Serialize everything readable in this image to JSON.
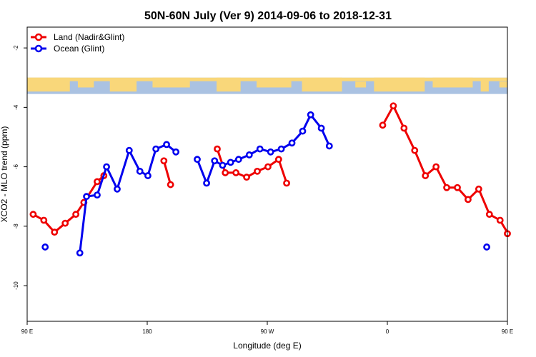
{
  "chart_data": {
    "type": "line",
    "title": "50N-60N July (Ver 9)   2014-09-06 to 2018-12-31",
    "xlabel": "Longitude (deg E)",
    "ylabel": "XCO2 - MLO trend (ppm)",
    "xlim": [
      90,
      450
    ],
    "ylim": [
      -11.2,
      -1.3
    ],
    "x_ticks": [
      {
        "value": 90,
        "label": "90 E"
      },
      {
        "value": 180,
        "label": "180"
      },
      {
        "value": 270,
        "label": "90 W"
      },
      {
        "value": 360,
        "label": "0"
      },
      {
        "value": 450,
        "label": "90 E"
      },
      {
        "value": 540,
        "label": "180"
      }
    ],
    "y_ticks": [
      {
        "value": -2,
        "label": "-2"
      },
      {
        "value": -4,
        "label": "-4"
      },
      {
        "value": -6,
        "label": "-6"
      },
      {
        "value": -8,
        "label": "-8"
      },
      {
        "value": -10,
        "label": "-10"
      }
    ],
    "map_band": {
      "ymin": -3.55,
      "ymax": -3.0
    },
    "legend_position": "top-left",
    "series": [
      {
        "name": "Land (Nadir&Glint)",
        "color": "#ee0000",
        "points": [
          [
            94.5,
            -7.6
          ],
          [
            102.5,
            -7.8
          ],
          [
            110.5,
            -8.2
          ],
          [
            118.5,
            -7.9
          ],
          [
            126.5,
            -7.6
          ],
          [
            132.5,
            -7.2
          ],
          [
            142.5,
            -6.5
          ],
          [
            147.5,
            -6.3
          ],
          [
            null,
            null
          ],
          [
            192.5,
            -5.8
          ],
          [
            197.5,
            -6.6
          ],
          [
            null,
            null
          ],
          [
            232.5,
            -5.4
          ],
          [
            238.5,
            -6.2
          ],
          [
            246.5,
            -6.2
          ],
          [
            254.5,
            -6.35
          ],
          [
            262.5,
            -6.15
          ],
          [
            270.5,
            -6.0
          ],
          [
            278.5,
            -5.75
          ],
          [
            284.5,
            -6.55
          ],
          [
            null,
            null
          ],
          [
            356.5,
            -4.6
          ],
          [
            364.5,
            -3.95
          ],
          [
            372.5,
            -4.7
          ],
          [
            380.5,
            -5.45
          ],
          [
            388.5,
            -6.3
          ],
          [
            396.5,
            -6.0
          ],
          [
            404.5,
            -6.7
          ],
          [
            412.5,
            -6.7
          ],
          [
            420.5,
            -7.1
          ],
          [
            428.5,
            -6.75
          ],
          [
            436.5,
            -7.6
          ],
          [
            444.5,
            -7.8
          ],
          [
            450.5,
            -8.25
          ],
          [
            458.5,
            -7.95
          ],
          [
            466.5,
            -7.6
          ],
          [
            470.5,
            -7.2
          ],
          [
            478.5,
            -6.5
          ],
          [
            484.5,
            -6.25
          ]
        ]
      },
      {
        "name": "Ocean (Glint)",
        "color": "#0000ee",
        "points": [
          [
            103.5,
            -8.7
          ],
          [
            null,
            null
          ],
          [
            129.5,
            -8.9
          ],
          [
            134.5,
            -7.0
          ],
          [
            142.5,
            -6.95
          ],
          [
            149.5,
            -6.0
          ],
          [
            157.5,
            -6.75
          ],
          [
            166.5,
            -5.45
          ],
          [
            174.5,
            -6.15
          ],
          [
            180.5,
            -6.3
          ],
          [
            186.5,
            -5.4
          ],
          [
            194.5,
            -5.25
          ],
          [
            201.5,
            -5.5
          ],
          [
            null,
            null
          ],
          [
            217.5,
            -5.75
          ],
          [
            224.5,
            -6.55
          ],
          [
            230.5,
            -5.8
          ],
          [
            236.5,
            -5.95
          ],
          [
            242.5,
            -5.85
          ],
          [
            248.5,
            -5.75
          ],
          [
            256.5,
            -5.6
          ],
          [
            264.5,
            -5.4
          ],
          [
            272.5,
            -5.5
          ],
          [
            280.5,
            -5.4
          ],
          [
            288.5,
            -5.2
          ],
          [
            296.5,
            -4.8
          ],
          [
            302.5,
            -4.25
          ],
          [
            310.5,
            -4.7
          ],
          [
            316.5,
            -5.3
          ],
          [
            null,
            null
          ],
          [
            434.5,
            -8.7
          ],
          [
            null,
            null
          ],
          [
            464.5,
            -8.9
          ],
          [
            469.5,
            -7.0
          ],
          [
            477.5,
            -6.95
          ],
          [
            484.5,
            -6.0
          ],
          [
            492.5,
            -6.75
          ]
        ]
      }
    ]
  }
}
